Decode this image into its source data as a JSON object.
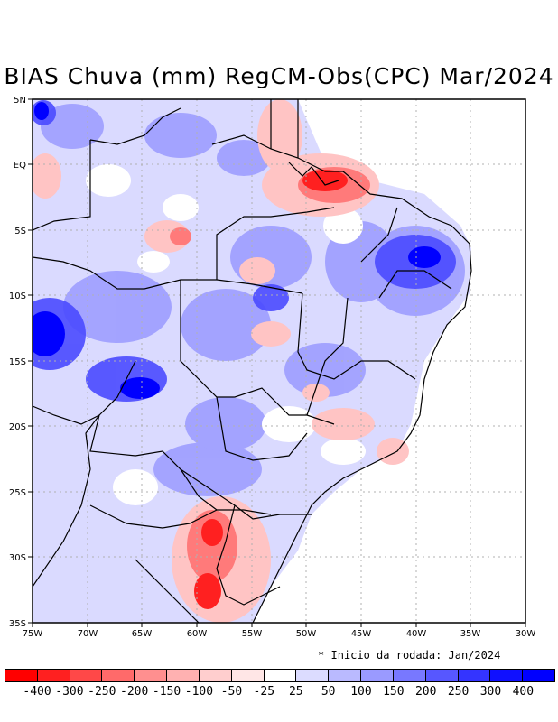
{
  "title": "BIAS Chuva (mm) RegCM-Obs(CPC) Mar/2024",
  "note": "Inicio da rodada: Jan/2024",
  "lon_labels": [
    "75W",
    "70W",
    "65W",
    "60W",
    "55W",
    "50W",
    "45W",
    "40W",
    "35W",
    "30W"
  ],
  "lat_labels": [
    "5N",
    "EQ",
    "5S",
    "10S",
    "15S",
    "20S",
    "25S",
    "30S",
    "35S"
  ],
  "colorbar": {
    "labels": [
      "-400",
      "-300",
      "-250",
      "-200",
      "-150",
      "-100",
      "-50",
      "-25",
      "25",
      "50",
      "100",
      "150",
      "200",
      "250",
      "300",
      "400"
    ],
    "colors": [
      "#ff0000",
      "#ff2020",
      "#ff4848",
      "#ff6a6a",
      "#ff8f8f",
      "#ffb1b1",
      "#ffcece",
      "#ffe6e6",
      "#ffffff",
      "#dcdcff",
      "#babaff",
      "#9a9aff",
      "#7878ff",
      "#5757ff",
      "#3434ff",
      "#1010ff",
      "#0000ff"
    ]
  },
  "palette": {
    "neg_strong": "#ff2020",
    "neg_mid": "#ff8f8f",
    "neg_light": "#ffd0d0",
    "pos_light": "#d8d8ff",
    "pos_mid": "#9a9aff",
    "pos_strong": "#3434ff",
    "border": "#000000",
    "grid": "#b0b0b0"
  }
}
